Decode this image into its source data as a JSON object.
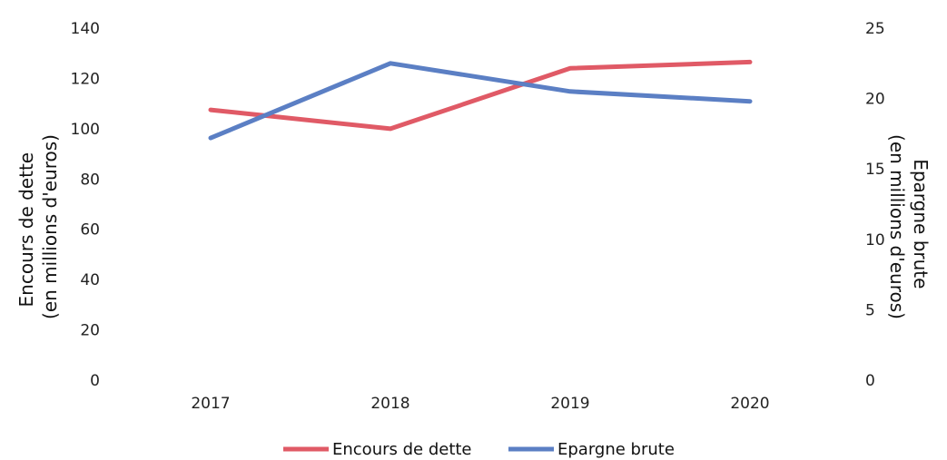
{
  "chart_data": {
    "type": "line",
    "categories": [
      "2017",
      "2018",
      "2019",
      "2020"
    ],
    "series": [
      {
        "name": "Encours de dette",
        "axis": "left",
        "color": "#e05a66",
        "values": [
          107.5,
          100,
          124,
          126.5
        ]
      },
      {
        "name": "Epargne brute",
        "axis": "right",
        "color": "#5b7fc4",
        "values": [
          17.2,
          22.5,
          20.5,
          19.8
        ]
      }
    ],
    "left_axis": {
      "title_lines": [
        "Encours de dette",
        "(en millions d'euros)"
      ],
      "ylim": [
        0,
        140
      ],
      "ticks": [
        "0",
        "20",
        "40",
        "60",
        "80",
        "100",
        "120",
        "140"
      ]
    },
    "right_axis": {
      "title_lines": [
        "Epargne brute",
        "(en millions d'euros)"
      ],
      "ylim": [
        0,
        25
      ],
      "ticks": [
        "0",
        "5",
        "10",
        "15",
        "20",
        "25"
      ]
    },
    "grid": false,
    "legend_position": "bottom"
  }
}
